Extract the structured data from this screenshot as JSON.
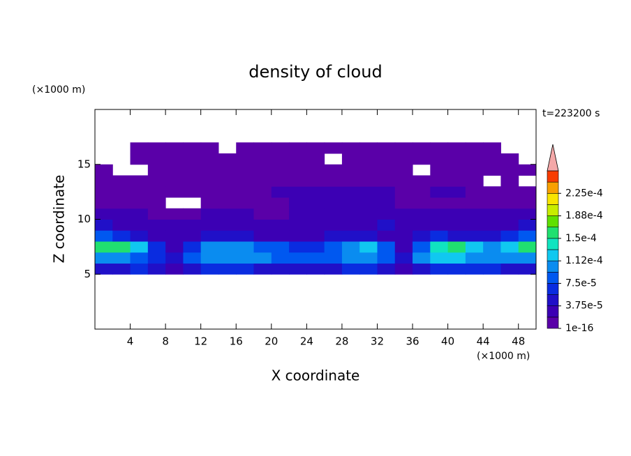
{
  "chart_data": {
    "type": "heatmap",
    "title": "density of cloud",
    "xlabel": "X coordinate",
    "ylabel": "Z coordinate",
    "x_unit": "(×1000 m)",
    "y_unit": "(×1000 m)",
    "annotation": "t=223200 s",
    "xlim": [
      0,
      50
    ],
    "xticks": [
      4,
      8,
      12,
      16,
      20,
      24,
      28,
      32,
      36,
      40,
      44,
      48
    ],
    "ylim": [
      0,
      20
    ],
    "yticks": [
      5,
      10,
      15
    ],
    "x": [
      1,
      3,
      5,
      7,
      9,
      11,
      13,
      15,
      17,
      19,
      21,
      23,
      25,
      27,
      29,
      31,
      33,
      35,
      37,
      39,
      41,
      43,
      45,
      47,
      49
    ],
    "y": [
      4.5,
      5.5,
      6.5,
      7.5,
      8.5,
      9.5,
      10.5,
      11.5,
      12.5,
      13.5,
      14.5,
      15.5,
      16.5
    ],
    "z": [
      [
        null,
        null,
        null,
        null,
        null,
        null,
        null,
        null,
        null,
        null,
        null,
        null,
        null,
        null,
        null,
        null,
        null,
        null,
        null,
        null,
        null,
        null,
        null,
        null,
        null
      ],
      [
        5e-05,
        5e-05,
        6e-05,
        5e-05,
        3e-05,
        5e-05,
        6e-05,
        6e-05,
        6e-05,
        5e-05,
        5e-05,
        5e-05,
        5e-05,
        5e-05,
        6e-05,
        6e-05,
        5e-05,
        3e-05,
        5e-05,
        6e-05,
        6e-05,
        6e-05,
        6e-05,
        5e-05,
        5e-05
      ],
      [
        0.00011,
        0.0001,
        9e-05,
        7e-05,
        4e-05,
        9e-05,
        0.00011,
        0.00011,
        0.0001,
        0.0001,
        9e-05,
        9e-05,
        8e-05,
        9e-05,
        0.0001,
        0.0001,
        8e-05,
        4e-05,
        0.00011,
        0.00012,
        0.00012,
        0.00011,
        0.0001,
        0.0001,
        0.00011
      ],
      [
        0.00016,
        0.00015,
        0.00012,
        7e-05,
        3e-05,
        6e-05,
        0.0001,
        0.00011,
        0.0001,
        9e-05,
        8e-05,
        7e-05,
        6e-05,
        8e-05,
        0.00011,
        0.00013,
        8e-05,
        3e-05,
        9e-05,
        0.00014,
        0.00015,
        0.00012,
        0.0001,
        0.00013,
        0.00015
      ],
      [
        8e-05,
        6e-05,
        4e-05,
        3e-05,
        2e-05,
        3e-05,
        4e-05,
        4e-05,
        4e-05,
        3e-05,
        3e-05,
        3e-05,
        3e-05,
        4e-05,
        5e-05,
        4e-05,
        3e-05,
        2e-05,
        4e-05,
        6e-05,
        5e-05,
        4e-05,
        4e-05,
        6e-05,
        8e-05
      ],
      [
        4e-05,
        3e-05,
        2.5e-05,
        2e-05,
        2e-05,
        2e-05,
        2.5e-05,
        2e-05,
        2e-05,
        2e-05,
        2e-05,
        2e-05,
        2.5e-05,
        3e-05,
        3e-05,
        3e-05,
        4e-05,
        3e-05,
        3e-05,
        3e-05,
        3e-05,
        2.5e-05,
        2.5e-05,
        3e-05,
        4e-05
      ],
      [
        2.5e-05,
        2e-05,
        2e-05,
        1e-05,
        1e-05,
        1.5e-05,
        2e-05,
        2e-05,
        2e-05,
        1e-05,
        1e-05,
        2e-05,
        2e-05,
        2e-05,
        2e-05,
        2e-05,
        2.5e-05,
        2e-05,
        2e-05,
        2e-05,
        2e-05,
        2e-05,
        2e-05,
        2e-05,
        2.5e-05
      ],
      [
        1e-05,
        1e-05,
        1e-05,
        1e-05,
        null,
        null,
        1e-05,
        1e-05,
        1e-05,
        1e-05,
        1e-05,
        2e-05,
        2e-05,
        2e-05,
        2e-05,
        2e-05,
        2e-05,
        1e-05,
        1e-05,
        1e-05,
        1e-05,
        1e-05,
        1e-05,
        1e-05,
        1e-05
      ],
      [
        1e-05,
        1e-05,
        1e-05,
        1e-05,
        1e-05,
        1e-05,
        1e-05,
        1e-05,
        1e-05,
        1e-05,
        2e-05,
        2e-05,
        2e-05,
        2e-05,
        2e-05,
        2e-05,
        2e-05,
        1e-05,
        1e-05,
        2e-05,
        2e-05,
        1e-05,
        1e-05,
        1e-05,
        1e-05
      ],
      [
        1e-05,
        1e-05,
        1e-05,
        1e-05,
        1e-05,
        1e-05,
        1e-05,
        1e-05,
        1e-05,
        1e-05,
        1e-05,
        1e-05,
        1e-05,
        1e-05,
        1e-05,
        1e-05,
        1e-05,
        1e-05,
        1e-05,
        1e-05,
        1e-05,
        1e-05,
        null,
        1e-05,
        null
      ],
      [
        5e-06,
        null,
        null,
        5e-06,
        5e-06,
        5e-06,
        5e-06,
        5e-06,
        5e-06,
        5e-06,
        5e-06,
        5e-06,
        5e-06,
        5e-06,
        5e-06,
        5e-06,
        5e-06,
        5e-06,
        null,
        5e-06,
        5e-06,
        5e-06,
        5e-06,
        5e-06,
        5e-06
      ],
      [
        null,
        null,
        5e-06,
        5e-06,
        5e-06,
        5e-06,
        5e-06,
        5e-06,
        5e-06,
        5e-06,
        5e-06,
        5e-06,
        5e-06,
        null,
        5e-06,
        5e-06,
        5e-06,
        5e-06,
        5e-06,
        5e-06,
        5e-06,
        5e-06,
        5e-06,
        5e-06,
        null
      ],
      [
        null,
        null,
        5e-06,
        5e-06,
        5e-06,
        5e-06,
        5e-06,
        null,
        5e-06,
        5e-06,
        5e-06,
        5e-06,
        5e-06,
        5e-06,
        5e-06,
        5e-06,
        5e-06,
        5e-06,
        5e-06,
        5e-06,
        5e-06,
        5e-06,
        5e-06,
        null,
        null
      ]
    ],
    "colorbar": {
      "levels": [
        1e-16,
        1.875e-05,
        3.75e-05,
        5.625e-05,
        7.5e-05,
        9.375e-05,
        0.0001125,
        0.00013125,
        0.00015,
        0.00016875,
        0.0001875,
        0.00020625,
        0.000225,
        0.00024375,
        0.0002625
      ],
      "colors": [
        "#5a00a8",
        "#3c00b4",
        "#2010c8",
        "#0a2ce0",
        "#0058f0",
        "#0a8cf0",
        "#10c8f0",
        "#10e4c0",
        "#20e070",
        "#60e000",
        "#c8ec00",
        "#f8e400",
        "#f8a000",
        "#f83c00"
      ],
      "over_color": "#f4a8a8",
      "ticks": [
        {
          "value": 1e-16,
          "label": "1e-16"
        },
        {
          "value": 3.75e-05,
          "label": "3.75e-5"
        },
        {
          "value": 7.5e-05,
          "label": "7.5e-5"
        },
        {
          "value": 0.0001125,
          "label": "1.12e-4"
        },
        {
          "value": 0.00015,
          "label": "1.5e-4"
        },
        {
          "value": 0.0001875,
          "label": "1.88e-4"
        },
        {
          "value": 0.000225,
          "label": "2.25e-4"
        }
      ]
    }
  }
}
